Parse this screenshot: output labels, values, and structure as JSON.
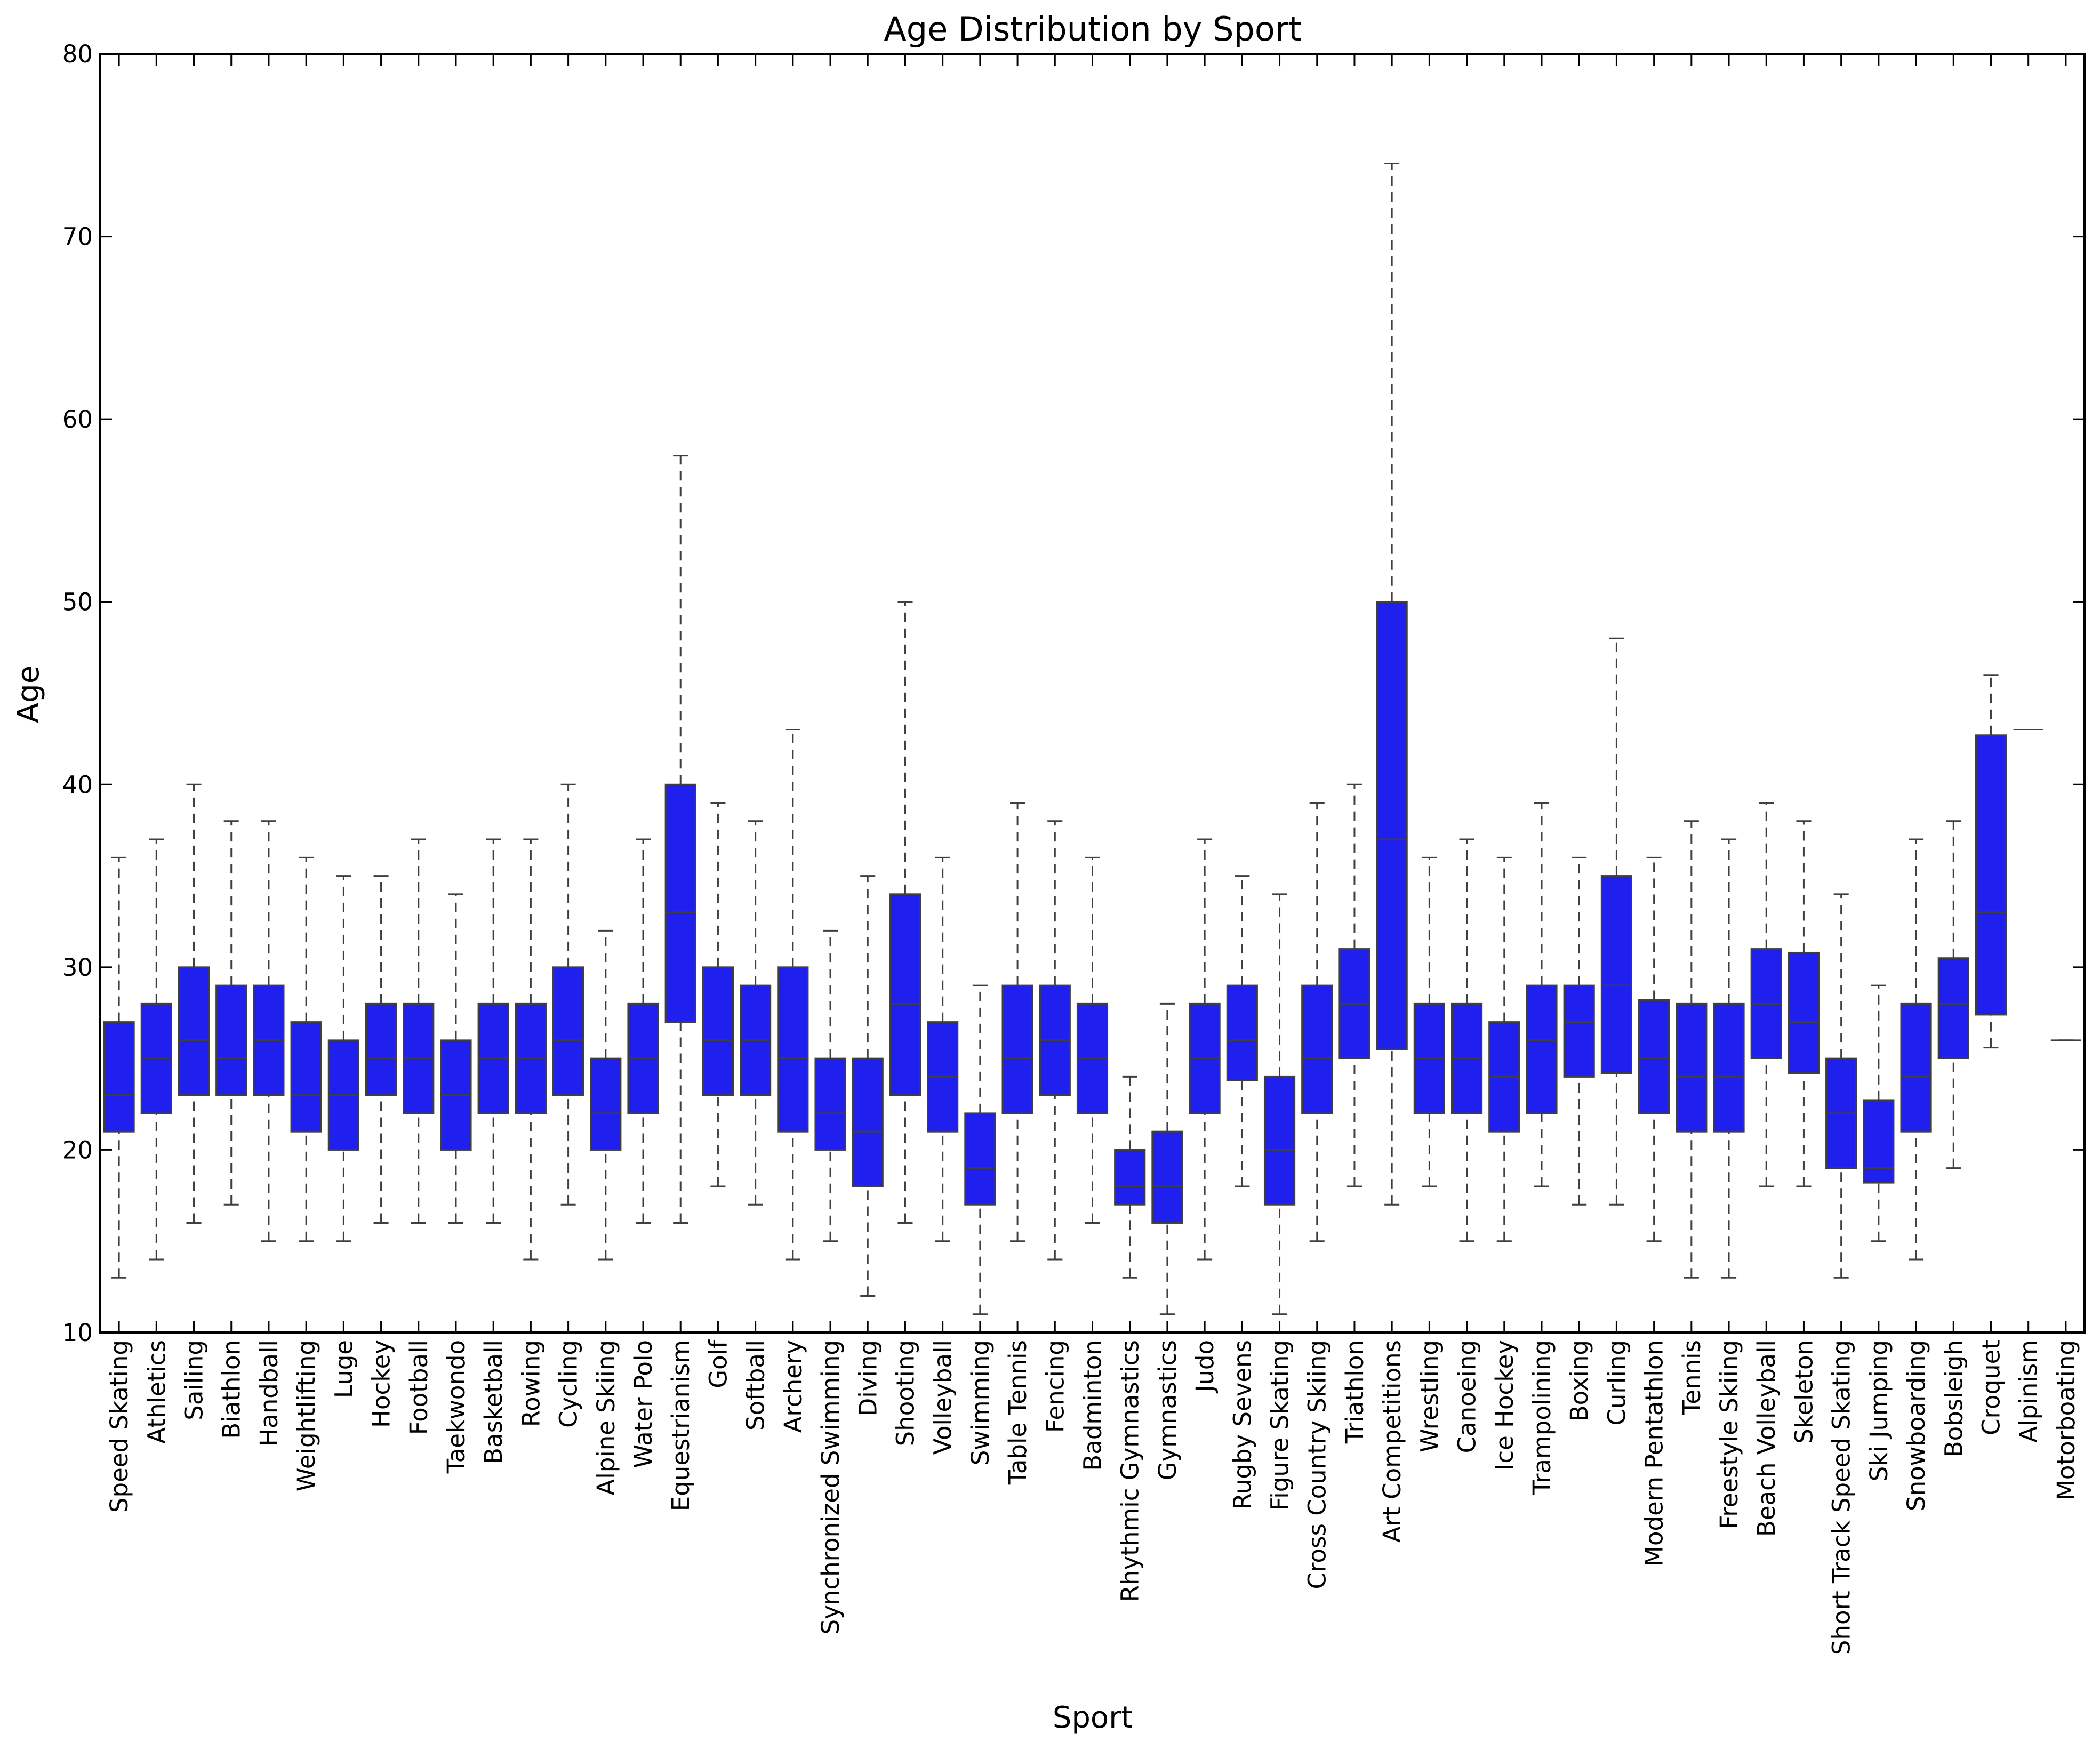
{
  "chart_data": {
    "type": "box",
    "title": "Age Distribution by Sport",
    "xlabel": "Sport",
    "ylabel": "Age",
    "ylim": [
      10,
      80
    ],
    "yticks": [
      10,
      20,
      30,
      40,
      50,
      60,
      70,
      80
    ],
    "grid": false,
    "box_color": "#2020ee",
    "line_color": "#3f3f3f",
    "boxes": [
      {
        "category": "Speed Skating",
        "min": 13,
        "q1": 21,
        "median": 23,
        "q3": 27,
        "max": 36
      },
      {
        "category": "Athletics",
        "min": 14,
        "q1": 22,
        "median": 25,
        "q3": 28,
        "max": 37
      },
      {
        "category": "Sailing",
        "min": 16,
        "q1": 23,
        "median": 26,
        "q3": 30,
        "max": 40
      },
      {
        "category": "Biathlon",
        "min": 17,
        "q1": 23,
        "median": 25,
        "q3": 29,
        "max": 38
      },
      {
        "category": "Handball",
        "min": 15,
        "q1": 23,
        "median": 26,
        "q3": 29,
        "max": 38
      },
      {
        "category": "Weightlifting",
        "min": 15,
        "q1": 21,
        "median": 23,
        "q3": 27,
        "max": 36
      },
      {
        "category": "Luge",
        "min": 15,
        "q1": 20,
        "median": 23,
        "q3": 26,
        "max": 35
      },
      {
        "category": "Hockey",
        "min": 16,
        "q1": 23,
        "median": 25,
        "q3": 28,
        "max": 35
      },
      {
        "category": "Football",
        "min": 16,
        "q1": 22,
        "median": 25,
        "q3": 28,
        "max": 37
      },
      {
        "category": "Taekwondo",
        "min": 16,
        "q1": 20,
        "median": 23,
        "q3": 26,
        "max": 34
      },
      {
        "category": "Basketball",
        "min": 16,
        "q1": 22,
        "median": 25,
        "q3": 28,
        "max": 37
      },
      {
        "category": "Rowing",
        "min": 14,
        "q1": 22,
        "median": 25,
        "q3": 28,
        "max": 37
      },
      {
        "category": "Cycling",
        "min": 17,
        "q1": 23,
        "median": 26,
        "q3": 30,
        "max": 40
      },
      {
        "category": "Alpine Skiing",
        "min": 14,
        "q1": 20,
        "median": 22,
        "q3": 25,
        "max": 32
      },
      {
        "category": "Water Polo",
        "min": 16,
        "q1": 22,
        "median": 25,
        "q3": 28,
        "max": 37
      },
      {
        "category": "Equestrianism",
        "min": 16,
        "q1": 27,
        "median": 33,
        "q3": 40,
        "max": 58
      },
      {
        "category": "Golf",
        "min": 18,
        "q1": 23,
        "median": 26,
        "q3": 30,
        "max": 39
      },
      {
        "category": "Softball",
        "min": 17,
        "q1": 23,
        "median": 26,
        "q3": 29,
        "max": 38
      },
      {
        "category": "Archery",
        "min": 14,
        "q1": 21,
        "median": 25,
        "q3": 30,
        "max": 43
      },
      {
        "category": "Synchronized Swimming",
        "min": 15,
        "q1": 20,
        "median": 22,
        "q3": 25,
        "max": 32
      },
      {
        "category": "Diving",
        "min": 12,
        "q1": 18,
        "median": 21,
        "q3": 25,
        "max": 35
      },
      {
        "category": "Shooting",
        "min": 16,
        "q1": 23,
        "median": 28,
        "q3": 34,
        "max": 50
      },
      {
        "category": "Volleyball",
        "min": 15,
        "q1": 21,
        "median": 24,
        "q3": 27,
        "max": 36
      },
      {
        "category": "Swimming",
        "min": 11,
        "q1": 17,
        "median": 19,
        "q3": 22,
        "max": 29
      },
      {
        "category": "Table Tennis",
        "min": 15,
        "q1": 22,
        "median": 25,
        "q3": 29,
        "max": 39
      },
      {
        "category": "Fencing",
        "min": 14,
        "q1": 23,
        "median": 26,
        "q3": 29,
        "max": 38
      },
      {
        "category": "Badminton",
        "min": 16,
        "q1": 22,
        "median": 25,
        "q3": 28,
        "max": 36
      },
      {
        "category": "Rhythmic Gymnastics",
        "min": 13,
        "q1": 17,
        "median": 18,
        "q3": 20,
        "max": 24
      },
      {
        "category": "Gymnastics",
        "min": 11,
        "q1": 16,
        "median": 18,
        "q3": 21,
        "max": 28
      },
      {
        "category": "Judo",
        "min": 14,
        "q1": 22,
        "median": 25,
        "q3": 28,
        "max": 37
      },
      {
        "category": "Rugby Sevens",
        "min": 18,
        "q1": 23.8,
        "median": 26,
        "q3": 29,
        "max": 35
      },
      {
        "category": "Figure Skating",
        "min": 11,
        "q1": 17,
        "median": 20,
        "q3": 24,
        "max": 34
      },
      {
        "category": "Cross Country Skiing",
        "min": 15,
        "q1": 22,
        "median": 25,
        "q3": 29,
        "max": 39
      },
      {
        "category": "Triathlon",
        "min": 18,
        "q1": 25,
        "median": 28,
        "q3": 31,
        "max": 40
      },
      {
        "category": "Art Competitions",
        "min": 17,
        "q1": 25.5,
        "median": 37,
        "q3": 50,
        "max": 74
      },
      {
        "category": "Wrestling",
        "min": 18,
        "q1": 22,
        "median": 25,
        "q3": 28,
        "max": 36
      },
      {
        "category": "Canoeing",
        "min": 15,
        "q1": 22,
        "median": 25,
        "q3": 28,
        "max": 37
      },
      {
        "category": "Ice Hockey",
        "min": 15,
        "q1": 21,
        "median": 24,
        "q3": 27,
        "max": 36
      },
      {
        "category": "Trampolining",
        "min": 18,
        "q1": 22,
        "median": 26,
        "q3": 29,
        "max": 39
      },
      {
        "category": "Boxing",
        "min": 17,
        "q1": 24,
        "median": 27,
        "q3": 29,
        "max": 36
      },
      {
        "category": "Curling",
        "min": 17,
        "q1": 24.2,
        "median": 29,
        "q3": 35,
        "max": 48
      },
      {
        "category": "Modern Pentathlon",
        "min": 15,
        "q1": 22,
        "median": 25,
        "q3": 28.2,
        "max": 36
      },
      {
        "category": "Tennis",
        "min": 13,
        "q1": 21,
        "median": 24,
        "q3": 28,
        "max": 38
      },
      {
        "category": "Freestyle Skiing",
        "min": 13,
        "q1": 21,
        "median": 24,
        "q3": 28,
        "max": 37
      },
      {
        "category": "Beach Volleyball",
        "min": 18,
        "q1": 25,
        "median": 28,
        "q3": 31,
        "max": 39
      },
      {
        "category": "Skeleton",
        "min": 18,
        "q1": 24.2,
        "median": 27,
        "q3": 30.8,
        "max": 38
      },
      {
        "category": "Short Track Speed Skating",
        "min": 13,
        "q1": 19,
        "median": 22,
        "q3": 25,
        "max": 34
      },
      {
        "category": "Ski Jumping",
        "min": 15,
        "q1": 18.2,
        "median": 19,
        "q3": 22.7,
        "max": 29
      },
      {
        "category": "Snowboarding",
        "min": 14,
        "q1": 21,
        "median": 24,
        "q3": 28,
        "max": 37
      },
      {
        "category": "Bobsleigh",
        "min": 19,
        "q1": 25,
        "median": 28,
        "q3": 30.5,
        "max": 38
      },
      {
        "category": "Croquet",
        "min": 25.6,
        "q1": 27.4,
        "median": 33,
        "q3": 42.7,
        "max": 46
      },
      {
        "category": "Alpinism",
        "min": 43,
        "q1": 43,
        "median": 43,
        "q3": 43,
        "max": 43
      },
      {
        "category": "Motorboating",
        "min": 26,
        "q1": 26,
        "median": 26,
        "q3": 26,
        "max": 26
      }
    ]
  }
}
